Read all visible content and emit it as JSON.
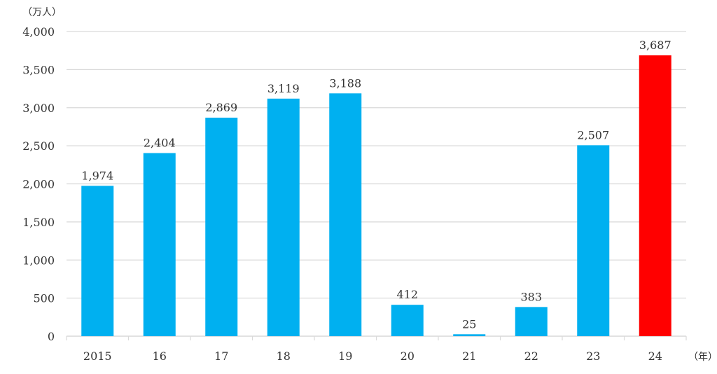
{
  "chart_data": {
    "type": "bar",
    "title": "",
    "ylabel": "（万人）",
    "xlabel": "（年）",
    "categories": [
      "2015",
      "16",
      "17",
      "18",
      "19",
      "20",
      "21",
      "22",
      "23",
      "24"
    ],
    "values": [
      1974,
      2404,
      2869,
      3119,
      3188,
      412,
      25,
      383,
      2507,
      3687
    ],
    "data_labels": [
      "1,974",
      "2,404",
      "2,869",
      "3,119",
      "3,188",
      "412",
      "25",
      "383",
      "2,507",
      "3,687"
    ],
    "ylim": [
      0,
      4000
    ],
    "yticks": [
      0,
      500,
      1000,
      1500,
      2000,
      2500,
      3000,
      3500,
      4000
    ],
    "ytick_labels": [
      "0",
      "500",
      "1,000",
      "1,500",
      "2,000",
      "2,500",
      "3,000",
      "3,500",
      "4,000"
    ],
    "grid": true,
    "legend": "none",
    "colors": {
      "default": "#00b0f0",
      "highlight": "#ff0000",
      "grid": "#d9d9d9"
    },
    "highlight_category": "24"
  }
}
